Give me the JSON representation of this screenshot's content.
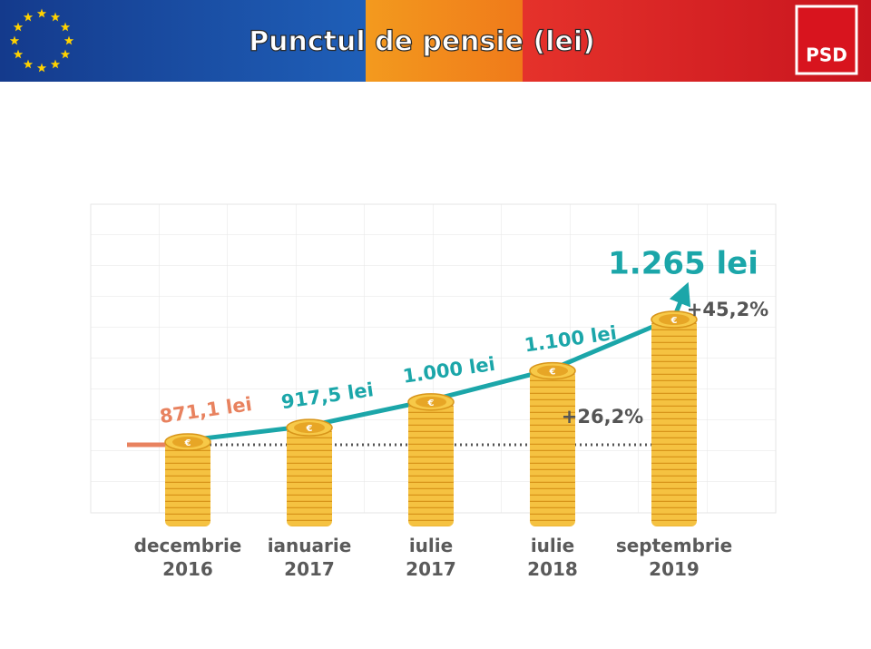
{
  "chart_data": {
    "type": "bar",
    "title": "Punctul de pensie (lei)",
    "logo": "PSD",
    "coin_symbol": "€",
    "categories": [
      "decembrie 2016",
      "ianuarie 2017",
      "iulie 2017",
      "iulie 2018",
      "septembrie 2019"
    ],
    "values": [
      871.1,
      917.5,
      1000,
      1100,
      1265
    ],
    "value_labels": [
      "871,1 lei",
      "917,5 lei",
      "1.000 lei",
      "1.100 lei",
      "1.265 lei"
    ],
    "annotations": [
      "+26,2%",
      "+45,2%"
    ],
    "color": "#f2b632",
    "line_color": "#1ba6a9",
    "base_color": "#e8825f",
    "ylim": [
      600,
      1300
    ]
  }
}
